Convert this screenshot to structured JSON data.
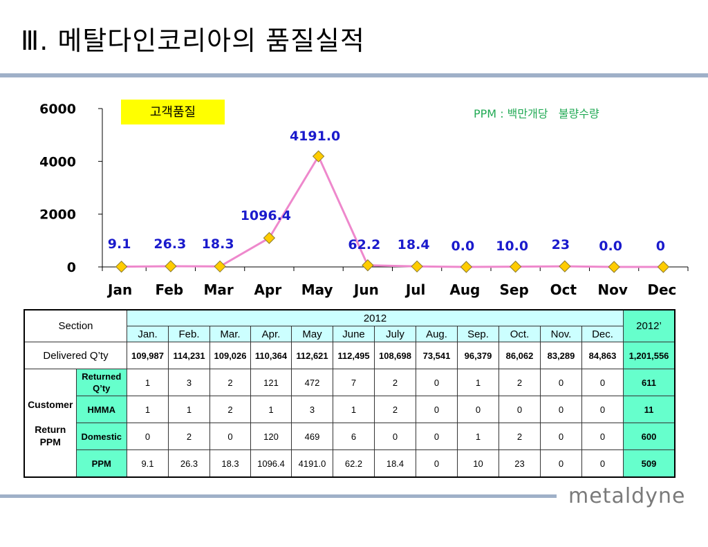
{
  "page": {
    "title": "Ⅲ. 메탈다인코리아의 품질실적"
  },
  "logo": {
    "text": "metaldyne"
  },
  "chart_data": {
    "type": "line",
    "categories": [
      "Jan",
      "Feb",
      "Mar",
      "Apr",
      "May",
      "Jun",
      "Jul",
      "Aug",
      "Sep",
      "Oct",
      "Nov",
      "Dec"
    ],
    "series": [
      {
        "name": "",
        "values": [
          9.1,
          26.3,
          18.3,
          1096.4,
          4191.0,
          62.2,
          18.4,
          0.0,
          10.0,
          23,
          0.0,
          0
        ]
      }
    ],
    "data_labels": [
      "9.1",
      "26.3",
      "18.3",
      "1096.4",
      "4191.0",
      "62.2",
      "18.4",
      "0.0",
      "10.0",
      "23",
      "0.0",
      "0"
    ],
    "yticks": [
      "0",
      "2000",
      "4000",
      "6000"
    ],
    "ylim": [
      0,
      6000
    ],
    "annotation_box": "고객품질",
    "annotation_text": "PPM : 백만개당   불량수량",
    "line_color": "#ee88cc",
    "marker_color": "#ffcc00"
  },
  "table": {
    "section_header": "Section",
    "year_header": "2012",
    "total_header": "2012’",
    "months": [
      "Jan.",
      "Feb.",
      "Mar.",
      "Apr.",
      "May",
      "June",
      "July",
      "Aug.",
      "Sep.",
      "Oct.",
      "Nov.",
      "Dec."
    ],
    "delivered": {
      "label": "Delivered Q’ty",
      "values": [
        "109,987",
        "114,231",
        "109,026",
        "110,364",
        "112,621",
        "112,495",
        "108,698",
        "73,541",
        "96,379",
        "86,062",
        "83,289",
        "84,863"
      ],
      "total": "1,201,556"
    },
    "group_label_1": "Customer",
    "group_label_2": "Return PPM",
    "rows": [
      {
        "label": "Returned Q’ty",
        "values": [
          "1",
          "3",
          "2",
          "121",
          "472",
          "7",
          "2",
          "0",
          "1",
          "2",
          "0",
          "0"
        ],
        "total": "611"
      },
      {
        "label": "HMMA",
        "values": [
          "1",
          "1",
          "2",
          "1",
          "3",
          "1",
          "2",
          "0",
          "0",
          "0",
          "0",
          "0"
        ],
        "total": "11"
      },
      {
        "label": "Domestic",
        "values": [
          "0",
          "2",
          "0",
          "120",
          "469",
          "6",
          "0",
          "0",
          "1",
          "2",
          "0",
          "0"
        ],
        "total": "600"
      },
      {
        "label": "PPM",
        "values": [
          "9.1",
          "26.3",
          "18.3",
          "1096.4",
          "4191.0",
          "62.2",
          "18.4",
          "0",
          "10",
          "23",
          "0",
          "0"
        ],
        "total": "509"
      }
    ]
  }
}
